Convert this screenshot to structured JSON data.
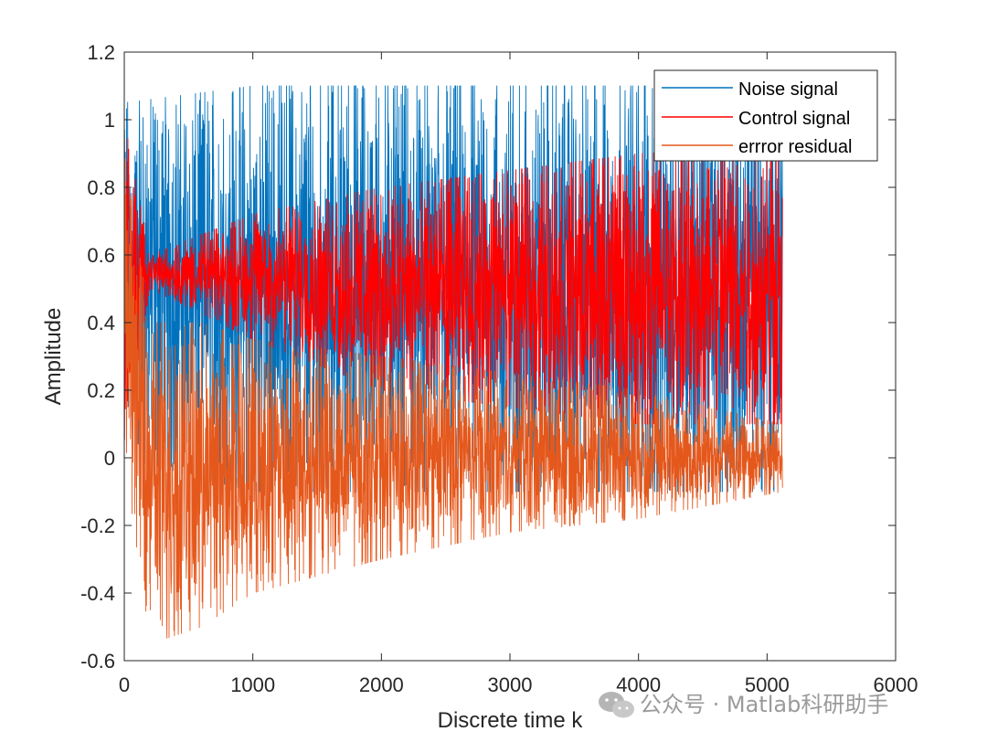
{
  "colors": {
    "noise": "#0072BD",
    "control": "#FF0000",
    "error": "#E5581C",
    "axis": "#262626",
    "watermark": "#9a9a9a"
  },
  "chart_data": {
    "type": "line",
    "title": "",
    "xlabel": "Discrete time k",
    "ylabel": "Amplitude",
    "xlim": [
      0,
      6000
    ],
    "ylim": [
      -0.6,
      1.2
    ],
    "x_ticks": [
      "0",
      "1000",
      "2000",
      "3000",
      "4000",
      "5000",
      "6000"
    ],
    "y_ticks": [
      "-0.6",
      "-0.4",
      "-0.2",
      "0",
      "0.2",
      "0.4",
      "0.6",
      "0.8",
      "1",
      "1.2"
    ],
    "grid": false,
    "legend_position": "top-right",
    "n_samples": 5120,
    "series": [
      {
        "name": "Noise signal",
        "key": "noise",
        "description": "random noise between approx. -0.1 and 1.1, centered near 0.5",
        "envelope_k": [
          0,
          1000,
          2000,
          3000,
          4000,
          5120
        ],
        "envelope_min": [
          0.0,
          -0.1,
          -0.1,
          -0.1,
          -0.1,
          -0.1
        ],
        "envelope_max": [
          1.05,
          1.1,
          1.1,
          1.1,
          1.1,
          1.1
        ]
      },
      {
        "name": "Control signal",
        "key": "control",
        "description": "adaptive control output converging to track the noise",
        "envelope_k": [
          0,
          200,
          1000,
          2000,
          3000,
          4000,
          5120
        ],
        "envelope_min": [
          0.05,
          0.5,
          0.35,
          0.2,
          0.15,
          0.1,
          0.1
        ],
        "envelope_max": [
          1.0,
          0.6,
          0.72,
          0.8,
          0.85,
          0.9,
          0.92
        ]
      },
      {
        "name": "errror residual",
        "key": "error",
        "description": "error residual decaying toward 0",
        "envelope_k": [
          0,
          200,
          600,
          1000,
          2000,
          3000,
          4000,
          5120
        ],
        "envelope_min": [
          0.0,
          -0.55,
          -0.5,
          -0.4,
          -0.3,
          -0.22,
          -0.18,
          -0.1
        ],
        "envelope_max": [
          0.9,
          0.4,
          0.4,
          0.35,
          0.3,
          0.25,
          0.2,
          0.1
        ]
      }
    ]
  },
  "watermark": {
    "text": "公众号 · Matlab科研助手"
  }
}
